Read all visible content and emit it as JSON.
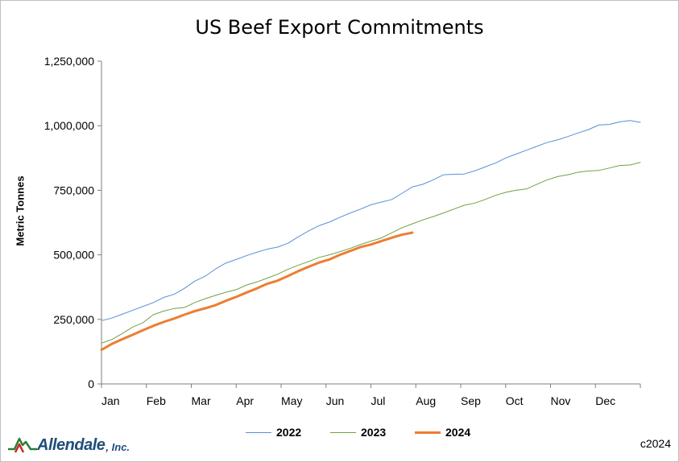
{
  "chart_data": {
    "type": "line",
    "title": "US Beef Export Commitments",
    "ylabel": "Metric Tonnes",
    "xlabel": "",
    "x_tick_labels": [
      "Jan",
      "Feb",
      "Mar",
      "Apr",
      "May",
      "Jun",
      "Jul",
      "Aug",
      "Sep",
      "Oct",
      "Nov",
      "Dec"
    ],
    "y_tick_labels": [
      "0",
      "250,000",
      "500,000",
      "750,000",
      "1,000,000",
      "1,250,000"
    ],
    "y_ticks": [
      0,
      250000,
      500000,
      750000,
      1000000,
      1250000
    ],
    "ylim": [
      0,
      1250000
    ],
    "x_unit": "week of year",
    "xlim": [
      0,
      52
    ],
    "grid": false,
    "legend_position": "bottom",
    "series": [
      {
        "name": "2022",
        "color": "#5b8fd1",
        "line_width": 1,
        "x": [
          0,
          1,
          2,
          3,
          4,
          5,
          6,
          7,
          8,
          9,
          10,
          11,
          12,
          13,
          14,
          15,
          16,
          17,
          18,
          19,
          20,
          21,
          22,
          23,
          24,
          25,
          26,
          27,
          28,
          29,
          30,
          31,
          32,
          33,
          34,
          35,
          36,
          37,
          38,
          39,
          40,
          41,
          42,
          43,
          44,
          45,
          46,
          47,
          48,
          49,
          50,
          51,
          52
        ],
        "values": [
          245000,
          255000,
          270000,
          285000,
          300000,
          315000,
          335000,
          347000,
          370000,
          398000,
          417000,
          445000,
          468000,
          482000,
          497000,
          510000,
          522000,
          530000,
          545000,
          570000,
          593000,
          613000,
          627000,
          645000,
          662000,
          677000,
          694000,
          704000,
          714000,
          738000,
          763000,
          773000,
          790000,
          810000,
          812000,
          813000,
          825000,
          840000,
          855000,
          875000,
          890000,
          905000,
          920000,
          935000,
          945000,
          958000,
          972000,
          985000,
          1003000,
          1005000,
          1015000,
          1020000,
          1013000
        ]
      },
      {
        "name": "2023",
        "color": "#70a047",
        "line_width": 1,
        "x": [
          0,
          1,
          2,
          3,
          4,
          5,
          6,
          7,
          8,
          9,
          10,
          11,
          12,
          13,
          14,
          15,
          16,
          17,
          18,
          19,
          20,
          21,
          22,
          23,
          24,
          25,
          26,
          27,
          28,
          29,
          30,
          31,
          32,
          33,
          34,
          35,
          36,
          37,
          38,
          39,
          40,
          41,
          42,
          43,
          44,
          45,
          46,
          47,
          48,
          49,
          50,
          51,
          52
        ],
        "values": [
          158000,
          172000,
          195000,
          220000,
          237000,
          268000,
          282000,
          292000,
          296000,
          315000,
          330000,
          343000,
          355000,
          365000,
          383000,
          395000,
          410000,
          425000,
          444000,
          460000,
          474000,
          490000,
          500000,
          512000,
          525000,
          540000,
          553000,
          565000,
          585000,
          605000,
          620000,
          635000,
          648000,
          662000,
          677000,
          692000,
          700000,
          714000,
          730000,
          742000,
          750000,
          755000,
          773000,
          790000,
          803000,
          810000,
          820000,
          825000,
          827000,
          836000,
          846000,
          848000,
          858000
        ]
      },
      {
        "name": "2024",
        "color": "#ed7d31",
        "line_width": 3,
        "x": [
          0,
          1,
          2,
          3,
          4,
          5,
          6,
          7,
          8,
          9,
          10,
          11,
          12,
          13,
          14,
          15,
          16,
          17,
          18,
          19,
          20,
          21,
          22,
          23,
          24,
          25,
          26,
          27,
          28,
          29,
          30
        ],
        "values": [
          132000,
          155000,
          173000,
          190000,
          208000,
          225000,
          240000,
          253000,
          268000,
          282000,
          293000,
          305000,
          322000,
          337000,
          354000,
          370000,
          388000,
          400000,
          418000,
          437000,
          454000,
          470000,
          482000,
          500000,
          515000,
          530000,
          540000,
          553000,
          566000,
          578000,
          586000
        ]
      }
    ]
  },
  "logo": {
    "name": "Allendale",
    "suffix": ", Inc."
  },
  "footer": {
    "copyright": "c2024"
  }
}
